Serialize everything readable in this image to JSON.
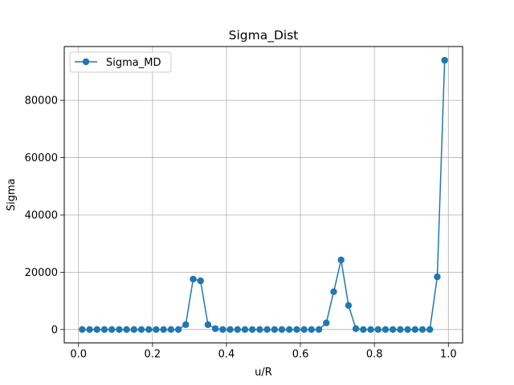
{
  "chart_data": {
    "type": "line",
    "title": "Sigma_Dist",
    "xlabel": "u/R",
    "ylabel": "Sigma",
    "xlim": [
      -0.0385,
      1.0385
    ],
    "ylim": [
      -4700,
      98800
    ],
    "xticks": [
      0.0,
      0.2,
      0.4,
      0.6,
      0.8,
      1.0
    ],
    "xtick_labels": [
      "0.0",
      "0.2",
      "0.4",
      "0.6",
      "0.8",
      "1.0"
    ],
    "yticks": [
      0,
      20000,
      40000,
      60000,
      80000
    ],
    "ytick_labels": [
      "0",
      "20000",
      "40000",
      "60000",
      "80000"
    ],
    "grid": true,
    "legend_position": "upper-left",
    "color": "#1f77b4",
    "series": [
      {
        "name": "Sigma_MD",
        "marker": "circle",
        "x": [
          0.01,
          0.03,
          0.05,
          0.07,
          0.09,
          0.11,
          0.13,
          0.15,
          0.17,
          0.19,
          0.21,
          0.23,
          0.25,
          0.27,
          0.29,
          0.31,
          0.33,
          0.35,
          0.37,
          0.39,
          0.41,
          0.43,
          0.45,
          0.47,
          0.49,
          0.51,
          0.53,
          0.55,
          0.57,
          0.59,
          0.61,
          0.63,
          0.65,
          0.67,
          0.69,
          0.71,
          0.73,
          0.75,
          0.77,
          0.79,
          0.81,
          0.83,
          0.85,
          0.87,
          0.89,
          0.91,
          0.93,
          0.95,
          0.97,
          0.99
        ],
        "y": [
          0,
          0,
          0,
          0,
          0,
          0,
          0,
          0,
          0,
          0,
          0,
          0,
          0,
          0,
          1700,
          17600,
          17000,
          1700,
          300,
          0,
          0,
          0,
          0,
          0,
          0,
          0,
          0,
          0,
          0,
          0,
          0,
          0,
          0,
          2300,
          13200,
          24300,
          8400,
          300,
          0,
          0,
          0,
          0,
          0,
          0,
          0,
          0,
          0,
          0,
          18400,
          94000
        ]
      }
    ]
  }
}
